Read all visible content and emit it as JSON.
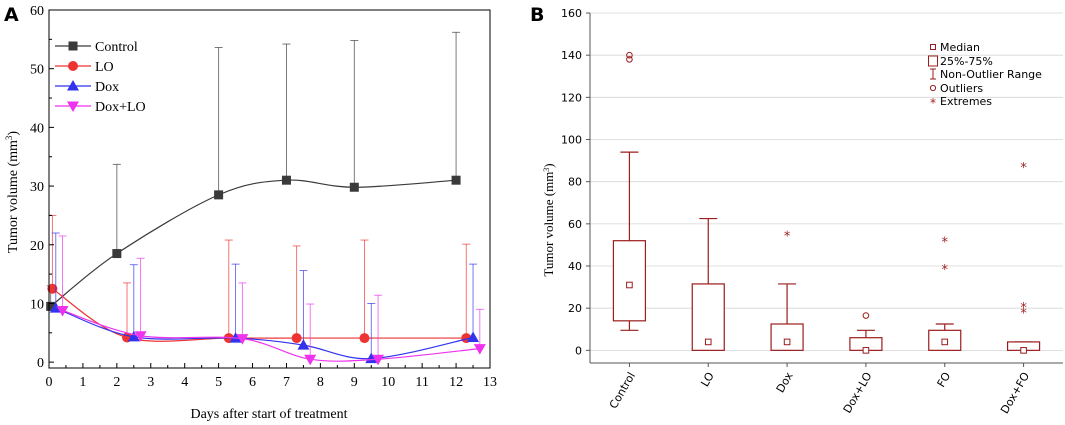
{
  "panel_labels": {
    "a": "A",
    "b": "B"
  },
  "chart_data": [
    {
      "type": "line",
      "panel": "A",
      "title": "",
      "xlabel": "Days after start of treatment",
      "ylabel": "Tumor volume (mm",
      "ylabel_sup": "3",
      "ylabel_close": ")",
      "xlim": [
        0,
        13
      ],
      "ylim": [
        -1,
        60
      ],
      "xticks": [
        "0",
        "1",
        "2",
        "3",
        "4",
        "5",
        "6",
        "7",
        "8",
        "9",
        "10",
        "11",
        "12",
        "13"
      ],
      "yticks": [
        "0",
        "10",
        "20",
        "30",
        "40",
        "50",
        "60"
      ],
      "legend_position": "top-left",
      "series": [
        {
          "name": "Control",
          "color": "#3a3a3a",
          "marker": "square",
          "points": [
            {
              "x": 0.05,
              "y": 9.5,
              "err": 3.5
            },
            {
              "x": 2.0,
              "y": 18.5,
              "err": 15.2
            },
            {
              "x": 5.0,
              "y": 28.5,
              "err": 25.1
            },
            {
              "x": 7.0,
              "y": 31.0,
              "err": 23.2
            },
            {
              "x": 9.0,
              "y": 29.8,
              "err": 25.0
            },
            {
              "x": 12.0,
              "y": 31.0,
              "err": 25.2
            }
          ]
        },
        {
          "name": "LO",
          "color": "#ee3333",
          "marker": "circle",
          "points": [
            {
              "x": 0.1,
              "y": 12.5,
              "err": 12.5
            },
            {
              "x": 2.3,
              "y": 4.2,
              "err": 9.3
            },
            {
              "x": 5.3,
              "y": 4.1,
              "err": 16.7
            },
            {
              "x": 7.3,
              "y": 4.1,
              "err": 15.7
            },
            {
              "x": 9.3,
              "y": 4.1,
              "err": 16.7
            },
            {
              "x": 12.3,
              "y": 4.1,
              "err": 16.0
            }
          ]
        },
        {
          "name": "Dox",
          "color": "#3333ee",
          "marker": "triangle-up",
          "points": [
            {
              "x": 0.2,
              "y": 9.2,
              "err": 12.8
            },
            {
              "x": 2.5,
              "y": 4.3,
              "err": 12.3
            },
            {
              "x": 5.5,
              "y": 4.1,
              "err": 12.6
            },
            {
              "x": 7.5,
              "y": 2.9,
              "err": 12.7
            },
            {
              "x": 9.5,
              "y": 0.6,
              "err": 9.4
            },
            {
              "x": 12.5,
              "y": 4.2,
              "err": 12.5
            }
          ]
        },
        {
          "name": "Dox+LO",
          "color": "#ee33ee",
          "marker": "triangle-down",
          "points": [
            {
              "x": 0.4,
              "y": 8.8,
              "err": 12.7
            },
            {
              "x": 2.7,
              "y": 4.5,
              "err": 13.2
            },
            {
              "x": 5.7,
              "y": 4.0,
              "err": 9.5
            },
            {
              "x": 7.7,
              "y": 0.5,
              "err": 9.4
            },
            {
              "x": 9.7,
              "y": 0.5,
              "err": 10.9
            },
            {
              "x": 12.7,
              "y": 2.3,
              "err": 6.7
            }
          ]
        }
      ]
    },
    {
      "type": "box",
      "panel": "B",
      "title": "",
      "xlabel": "",
      "ylabel": "Tumor volume (mm",
      "ylabel_sup": "3",
      "ylabel_close": ")",
      "ylim": [
        -6,
        160
      ],
      "yticks": [
        "0",
        "20",
        "40",
        "60",
        "80",
        "100",
        "120",
        "140",
        "160"
      ],
      "grid": true,
      "color": "#9b1c1c",
      "categories": [
        "Control",
        "LO",
        "Dox",
        "Dox+LO",
        "FO",
        "Dox+FO"
      ],
      "boxes": [
        {
          "whisker_low": 9.5,
          "q1": 14,
          "median": 31,
          "q3": 52,
          "whisker_high": 94,
          "outliers": [
            138,
            140
          ],
          "extremes": []
        },
        {
          "whisker_low": 0,
          "q1": 0,
          "median": 4,
          "q3": 31.5,
          "whisker_high": 62.5,
          "outliers": [],
          "extremes": []
        },
        {
          "whisker_low": 0,
          "q1": 0,
          "median": 4,
          "q3": 12.5,
          "whisker_high": 31.5,
          "outliers": [],
          "extremes": [
            55
          ]
        },
        {
          "whisker_low": 0,
          "q1": 0,
          "median": 0,
          "q3": 6,
          "whisker_high": 9.5,
          "outliers": [
            16.5
          ],
          "extremes": []
        },
        {
          "whisker_low": 0,
          "q1": 0,
          "median": 4,
          "q3": 9.5,
          "whisker_high": 12.5,
          "outliers": [],
          "extremes": [
            39,
            52
          ]
        },
        {
          "whisker_low": 0,
          "q1": 0,
          "median": 0,
          "q3": 4,
          "whisker_high": 4,
          "outliers": [],
          "extremes": [
            18.5,
            21,
            87.5
          ]
        }
      ],
      "legend_position": "top-right",
      "legend": [
        "Median",
        "25%-75%",
        "Non-Outlier Range",
        "Outliers",
        "Extremes"
      ]
    }
  ]
}
